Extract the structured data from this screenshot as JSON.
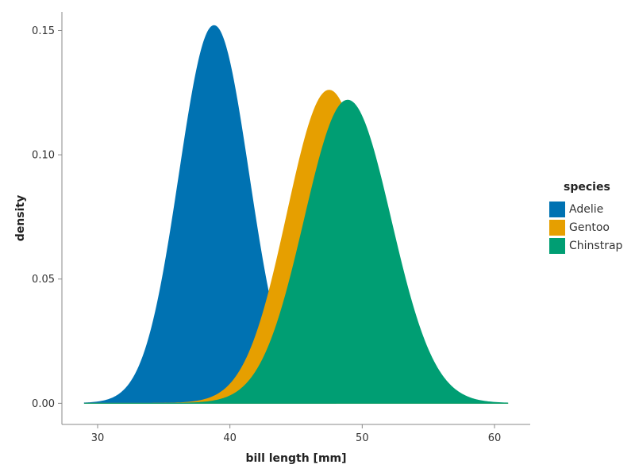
{
  "chart_data": {
    "type": "area",
    "title": "",
    "xlabel": "bill length [mm]",
    "ylabel": "density",
    "xlim": [
      27.3,
      62.7
    ],
    "ylim": [
      -0.0085,
      0.1575
    ],
    "x_ticks": [
      30,
      40,
      50,
      60
    ],
    "x_tick_labels": [
      "30",
      "40",
      "50",
      "60"
    ],
    "y_ticks": [
      0.0,
      0.05,
      0.1,
      0.15
    ],
    "y_tick_labels": [
      "0.00",
      "0.05",
      "0.10",
      "0.15"
    ],
    "legend": {
      "title": "species",
      "position": "right"
    },
    "series": [
      {
        "name": "Adelie",
        "color": "#0072B2",
        "distribution": "normal",
        "mean": 38.8,
        "sd": 2.63,
        "peak_density": 0.152,
        "x_range": [
          29.0,
          48.0
        ]
      },
      {
        "name": "Gentoo",
        "color": "#E69F00",
        "distribution": "normal",
        "mean": 47.5,
        "sd": 3.17,
        "peak_density": 0.126,
        "x_range": [
          29.0,
          61.0
        ]
      },
      {
        "name": "Chinstrap",
        "color": "#009E73",
        "distribution": "normal",
        "mean": 48.9,
        "sd": 3.27,
        "peak_density": 0.122,
        "x_range": [
          29.0,
          61.0
        ]
      }
    ]
  }
}
